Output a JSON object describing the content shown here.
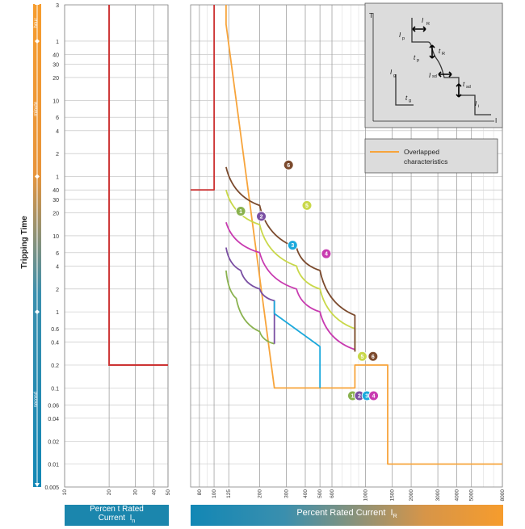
{
  "chart_data": {
    "type": "line",
    "ylabel": "Tripping Time",
    "y_scale": "log",
    "ylim": [
      0.005,
      10800
    ],
    "y_ticks": [
      {
        "v": 0.005,
        "t": "0.005"
      },
      {
        "v": 0.01,
        "t": "0.01"
      },
      {
        "v": 0.02,
        "t": "0.02"
      },
      {
        "v": 0.04,
        "t": "0.04"
      },
      {
        "v": 0.06,
        "t": "0.06"
      },
      {
        "v": 0.1,
        "t": "0.1"
      },
      {
        "v": 0.2,
        "t": "0.2"
      },
      {
        "v": 0.4,
        "t": "0.4"
      },
      {
        "v": 0.6,
        "t": "0.6"
      },
      {
        "v": 1,
        "t": "1"
      },
      {
        "v": 2,
        "t": "2"
      },
      {
        "v": 4,
        "t": "4"
      },
      {
        "v": 6,
        "t": "6"
      },
      {
        "v": 10,
        "t": "10"
      },
      {
        "v": 20,
        "t": "20"
      },
      {
        "v": 30,
        "t": "30"
      },
      {
        "v": 40,
        "t": "40"
      },
      {
        "v": 60,
        "t": "1"
      },
      {
        "v": 120,
        "t": "2"
      },
      {
        "v": 240,
        "t": "4"
      },
      {
        "v": 360,
        "t": "6"
      },
      {
        "v": 600,
        "t": "10"
      },
      {
        "v": 1200,
        "t": "20"
      },
      {
        "v": 1800,
        "t": "30"
      },
      {
        "v": 2400,
        "t": "40"
      },
      {
        "v": 3600,
        "t": "1"
      },
      {
        "v": 10800,
        "t": "3"
      }
    ],
    "time_unit_labels": [
      "hour",
      "minute",
      "second"
    ],
    "left_panel": {
      "xlabel_line1": "Percen t Rated",
      "xlabel_line2": "Current",
      "xlabel_symbol": "I",
      "xlabel_sub": "n",
      "xlim": [
        10,
        50
      ],
      "x_ticks": [
        10,
        20,
        30,
        40,
        50
      ],
      "series": [
        {
          "color": "#cc3333",
          "points": [
            [
              20,
              10800
            ],
            [
              20,
              0.2
            ],
            [
              50,
              0.2
            ]
          ]
        }
      ]
    },
    "right_panel": {
      "xlabel": "Percent Rated Current",
      "xlabel_symbol": "I",
      "xlabel_sub": "R",
      "xlim": [
        70,
        8000
      ],
      "x_ticks": [
        80,
        100,
        125,
        200,
        300,
        400,
        500,
        600,
        1000,
        1500,
        2000,
        3000,
        4000,
        5000,
        8000
      ],
      "series": [
        {
          "id": "ltpu",
          "color": "#cc3333",
          "points": [
            [
              70,
              40
            ],
            [
              100,
              40
            ],
            [
              100,
              10800
            ]
          ]
        },
        {
          "id": "overlap",
          "color": "#f7a43b",
          "points": [
            [
              120,
              10800
            ],
            [
              120,
              6000
            ],
            [
              250,
              0.1
            ],
            [
              850,
              0.1
            ],
            [
              850,
              0.2
            ],
            [
              1400,
              0.2
            ],
            [
              1400,
              0.01
            ],
            [
              8000,
              0.01
            ]
          ]
        },
        {
          "id": "1",
          "color": "#8ab24f",
          "points": [
            [
              120,
              3.5
            ],
            [
              140,
              1.5
            ],
            [
              200,
              0.55
            ],
            [
              250,
              0.38
            ]
          ]
        },
        {
          "id": "2",
          "color": "#7a4fa3",
          "points": [
            [
              120,
              7
            ],
            [
              150,
              3.5
            ],
            [
              200,
              2
            ],
            [
              250,
              1.4
            ]
          ]
        },
        {
          "id": "3",
          "color": "#1ca9dc",
          "points": [
            [
              250,
              0.38
            ],
            [
              500,
              0.1
            ]
          ]
        },
        {
          "id": "4",
          "color": "#c83bb0",
          "points": [
            [
              120,
              15
            ],
            [
              200,
              6
            ],
            [
              350,
              2
            ],
            [
              500,
              1
            ],
            [
              850,
              0.32
            ]
          ]
        },
        {
          "id": "5",
          "color": "#c9d84a",
          "points": [
            [
              120,
              40
            ],
            [
              200,
              14
            ],
            [
              350,
              4
            ],
            [
              500,
              2
            ],
            [
              850,
              0.6
            ]
          ]
        },
        {
          "id": "6",
          "color": "#7b4a2d",
          "points": [
            [
              120,
              80
            ],
            [
              200,
              25
            ],
            [
              350,
              7
            ],
            [
              500,
              3.5
            ],
            [
              850,
              0.9
            ]
          ]
        }
      ],
      "markers": [
        {
          "label": "1",
          "color": "#8ab24f",
          "x": 150,
          "y": 21
        },
        {
          "label": "2",
          "color": "#7a4fa3",
          "x": 205,
          "y": 18
        },
        {
          "label": "3",
          "color": "#1ca9dc",
          "x": 330,
          "y": 7.5
        },
        {
          "label": "4",
          "color": "#c83bb0",
          "x": 550,
          "y": 5.8
        },
        {
          "label": "5",
          "color": "#c9d84a",
          "x": 410,
          "y": 25
        },
        {
          "label": "6",
          "color": "#7b4a2d",
          "x": 310,
          "y": 85
        },
        {
          "label": "5",
          "color": "#c9d84a",
          "x": 950,
          "y": 0.26
        },
        {
          "label": "6",
          "color": "#7b4a2d",
          "x": 1120,
          "y": 0.26
        },
        {
          "label": "1",
          "color": "#8ab24f",
          "x": 820,
          "y": 0.079
        },
        {
          "label": "2",
          "color": "#7a4fa3",
          "x": 910,
          "y": 0.079
        },
        {
          "label": "3",
          "color": "#1ca9dc",
          "x": 1020,
          "y": 0.079
        },
        {
          "label": "4",
          "color": "#c83bb0",
          "x": 1130,
          "y": 0.079
        }
      ]
    },
    "legend": {
      "text_line1": "Overlapped",
      "text_line2": "characteristics",
      "color": "#f7a43b",
      "placement": "right"
    },
    "inset": {
      "axis_y": "T",
      "axis_x": "I",
      "labels": [
        "I",
        "R",
        "t",
        "R",
        "I",
        "p",
        "t",
        "p",
        "I",
        "g",
        "t",
        "g",
        "I",
        "sd",
        "t",
        "sd",
        "I",
        "i"
      ]
    }
  }
}
